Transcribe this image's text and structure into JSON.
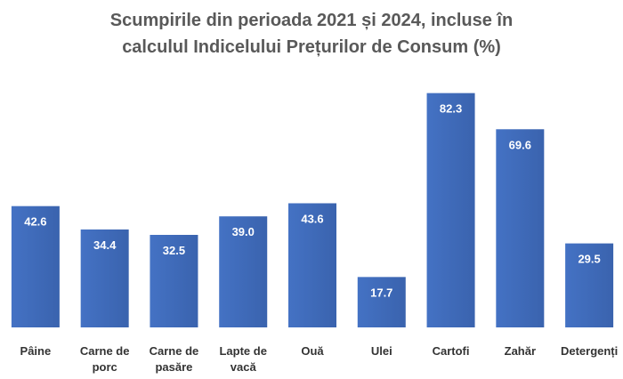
{
  "chart_data": {
    "type": "bar",
    "title_lines": [
      "Scumpirile din perioada 2021 și 2024, incluse în",
      "calculul Indicelului Prețurilor de Consum (%)"
    ],
    "categories": [
      [
        "Pâine"
      ],
      [
        "Carne de",
        "porc"
      ],
      [
        "Carne de",
        "pasăre"
      ],
      [
        "Lapte de",
        "vacă"
      ],
      [
        "Ouă"
      ],
      [
        "Ulei"
      ],
      [
        "Cartofi"
      ],
      [
        "Zahăr"
      ],
      [
        "Detergenți"
      ]
    ],
    "values": [
      42.6,
      34.4,
      32.5,
      39.0,
      43.6,
      17.7,
      82.3,
      69.6,
      29.5
    ],
    "value_labels": [
      "42.6",
      "34.4",
      "32.5",
      "39.0",
      "43.6",
      "17.7",
      "82.3",
      "69.6",
      "29.5"
    ],
    "ylim": [
      0,
      90
    ],
    "grid": false,
    "legend": "none",
    "bar_color": "#4472C4",
    "bar_color_dark": "#3A63AE"
  }
}
